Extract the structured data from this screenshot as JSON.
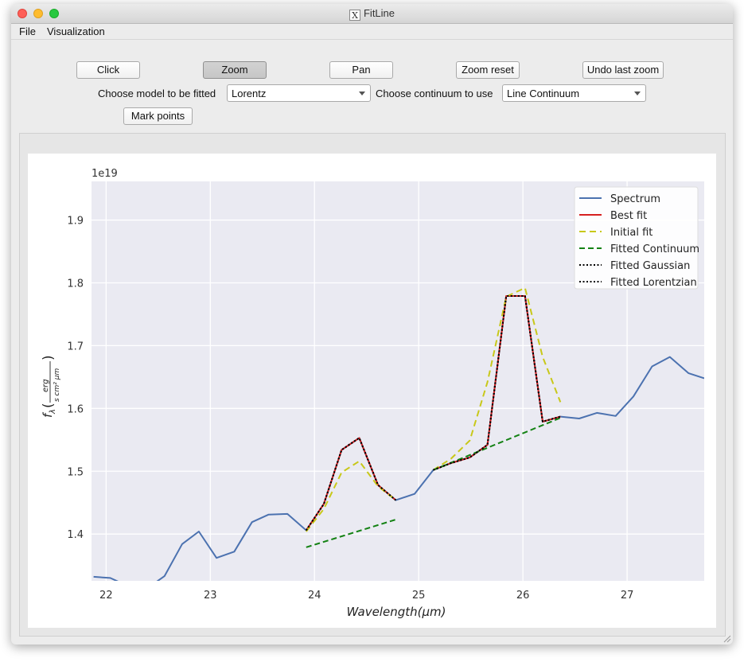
{
  "window": {
    "title": "FitLine",
    "title_icon": "X"
  },
  "menu": [
    {
      "label": "File"
    },
    {
      "label": "Visualization"
    }
  ],
  "toolbar": {
    "click": "Click",
    "zoom": "Zoom",
    "pan": "Pan",
    "zoom_reset": "Zoom reset",
    "undo_zoom": "Undo last zoom",
    "zoom_active": true
  },
  "controls": {
    "model_label": "Choose model to be fitted",
    "model_value": "Lorentz",
    "continuum_label": "Choose continuum to use",
    "continuum_value": "Line Continuum",
    "mark_points": "Mark points"
  },
  "colors": {
    "plot_bg": "#eaeaf2",
    "spectrum": "#4c72b0",
    "best_fit": "#d62020",
    "initial_fit": "#c8c819",
    "continuum": "#148214",
    "gaussian": "#000000",
    "lorentzian": "#000000"
  },
  "chart_data": {
    "type": "line",
    "xlabel": "Wavelength(μm)",
    "ylabel": "fλ(erg / s cm² μm)",
    "y_scale_label": "1e19",
    "xlim": [
      21.86,
      27.74
    ],
    "ylim": [
      1.3255,
      1.9615
    ],
    "x_ticks": [
      22,
      23,
      24,
      25,
      26,
      27
    ],
    "y_ticks": [
      1.4,
      1.5,
      1.6,
      1.7,
      1.8,
      1.9
    ],
    "grid": true,
    "legend_position": "top-right",
    "series": [
      {
        "name": "Spectrum",
        "style": "solid",
        "points": [
          [
            21.88,
            1.332
          ],
          [
            22.04,
            1.33
          ],
          [
            22.2,
            1.318
          ],
          [
            22.38,
            1.312
          ],
          [
            22.56,
            1.333
          ],
          [
            22.73,
            1.384
          ],
          [
            22.89,
            1.404
          ],
          [
            23.06,
            1.362
          ],
          [
            23.23,
            1.372
          ],
          [
            23.4,
            1.419
          ],
          [
            23.56,
            1.431
          ],
          [
            23.74,
            1.432
          ],
          [
            23.92,
            1.406
          ],
          [
            24.09,
            1.448
          ],
          [
            24.26,
            1.534
          ],
          [
            24.43,
            1.553
          ],
          [
            24.61,
            1.478
          ],
          [
            24.78,
            1.454
          ],
          [
            24.96,
            1.464
          ],
          [
            25.14,
            1.502
          ],
          [
            25.31,
            1.513
          ],
          [
            25.49,
            1.522
          ],
          [
            25.66,
            1.542
          ],
          [
            25.84,
            1.779
          ],
          [
            26.02,
            1.779
          ],
          [
            26.19,
            1.579
          ],
          [
            26.36,
            1.587
          ],
          [
            26.54,
            1.584
          ],
          [
            26.71,
            1.593
          ],
          [
            26.89,
            1.588
          ],
          [
            27.06,
            1.619
          ],
          [
            27.24,
            1.667
          ],
          [
            27.41,
            1.682
          ],
          [
            27.59,
            1.656
          ],
          [
            27.74,
            1.648
          ]
        ]
      },
      {
        "name": "Best fit",
        "style": "solid",
        "points": [
          [
            23.92,
            1.406
          ],
          [
            24.09,
            1.448
          ],
          [
            24.26,
            1.534
          ],
          [
            24.43,
            1.553
          ],
          [
            24.61,
            1.478
          ],
          [
            24.78,
            1.454
          ],
          [
            null,
            null
          ],
          [
            25.14,
            1.502
          ],
          [
            25.31,
            1.513
          ],
          [
            25.49,
            1.522
          ],
          [
            25.66,
            1.542
          ],
          [
            25.84,
            1.779
          ],
          [
            26.02,
            1.779
          ],
          [
            26.19,
            1.579
          ],
          [
            26.36,
            1.587
          ]
        ]
      },
      {
        "name": "Initial fit",
        "style": "dashed",
        "points": [
          [
            23.92,
            1.404
          ],
          [
            24.09,
            1.44
          ],
          [
            24.26,
            1.498
          ],
          [
            24.43,
            1.516
          ],
          [
            24.61,
            1.476
          ],
          [
            24.78,
            1.454
          ],
          [
            null,
            null
          ],
          [
            25.14,
            1.502
          ],
          [
            25.31,
            1.52
          ],
          [
            25.49,
            1.549
          ],
          [
            25.66,
            1.642
          ],
          [
            25.84,
            1.778
          ],
          [
            26.02,
            1.792
          ],
          [
            26.19,
            1.682
          ],
          [
            26.36,
            1.61
          ]
        ]
      },
      {
        "name": "Fitted Continuum",
        "style": "dashed",
        "points": [
          [
            23.92,
            1.379
          ],
          [
            24.78,
            1.423
          ],
          [
            null,
            null
          ],
          [
            25.14,
            1.502
          ],
          [
            26.36,
            1.585
          ]
        ]
      },
      {
        "name": "Fitted Gaussian",
        "style": "dotted",
        "points": [
          [
            23.92,
            1.406
          ],
          [
            24.09,
            1.448
          ],
          [
            24.26,
            1.534
          ],
          [
            24.43,
            1.553
          ],
          [
            24.61,
            1.478
          ],
          [
            24.78,
            1.454
          ],
          [
            null,
            null
          ],
          [
            25.14,
            1.502
          ],
          [
            25.31,
            1.513
          ],
          [
            25.49,
            1.522
          ],
          [
            25.66,
            1.542
          ],
          [
            25.84,
            1.779
          ],
          [
            26.02,
            1.779
          ],
          [
            26.19,
            1.579
          ],
          [
            26.36,
            1.587
          ]
        ]
      },
      {
        "name": "Fitted Lorentzian",
        "style": "dotted",
        "points": [
          [
            23.92,
            1.406
          ],
          [
            24.09,
            1.448
          ],
          [
            24.26,
            1.534
          ],
          [
            24.43,
            1.553
          ],
          [
            24.61,
            1.478
          ],
          [
            24.78,
            1.454
          ],
          [
            null,
            null
          ],
          [
            25.14,
            1.502
          ],
          [
            25.31,
            1.513
          ],
          [
            25.49,
            1.522
          ],
          [
            25.66,
            1.542
          ],
          [
            25.84,
            1.779
          ],
          [
            26.02,
            1.779
          ],
          [
            26.19,
            1.579
          ],
          [
            26.36,
            1.587
          ]
        ]
      }
    ]
  }
}
